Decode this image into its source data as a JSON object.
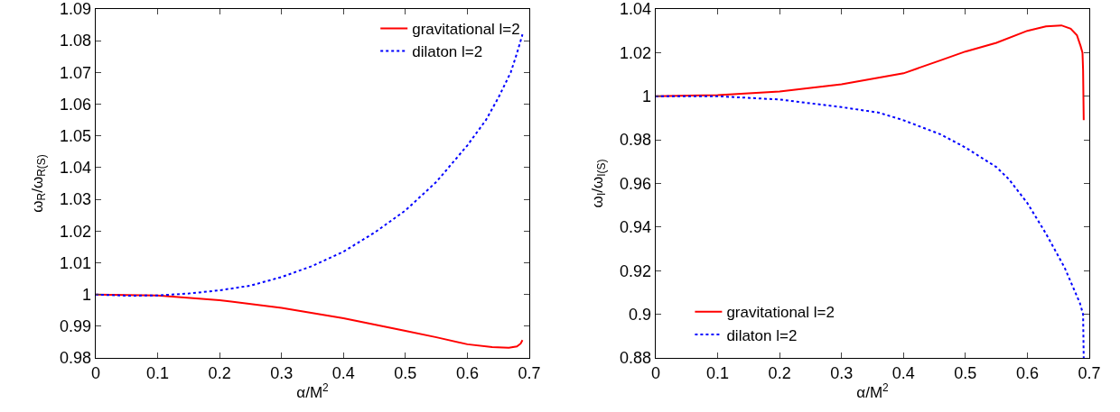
{
  "chart_data": [
    {
      "type": "line",
      "xlabel": "α/M$^{2}$",
      "ylabel": "ω$_{R}$/ω$_{R(S)}$",
      "xlim": [
        0,
        0.7
      ],
      "xticks": [
        0,
        0.1,
        0.2,
        0.3,
        0.4,
        0.5,
        0.6,
        0.7
      ],
      "ylim": [
        0.98,
        1.09
      ],
      "yticks": [
        0.98,
        0.99,
        1,
        1.01,
        1.02,
        1.03,
        1.04,
        1.05,
        1.06,
        1.07,
        1.08,
        1.09
      ],
      "grid": false,
      "legend": "top right",
      "marker": "none",
      "series": [
        {
          "name": "gravitational l=2",
          "color": "#ff0000",
          "line_style": "solid",
          "x": [
            0,
            0.1,
            0.2,
            0.3,
            0.4,
            0.5,
            0.55,
            0.6,
            0.64,
            0.667,
            0.68,
            0.686,
            0.689
          ],
          "values": [
            1.0,
            0.9997,
            0.9982,
            0.9958,
            0.9925,
            0.9885,
            0.9865,
            0.9843,
            0.9834,
            0.9832,
            0.9836,
            0.9845,
            0.9856
          ]
        },
        {
          "name": "dilaton l=2",
          "color": "#0000ff",
          "line_style": "dotted",
          "x": [
            0,
            0.05,
            0.1,
            0.15,
            0.2,
            0.25,
            0.3,
            0.35,
            0.4,
            0.45,
            0.5,
            0.55,
            0.6,
            0.63,
            0.65,
            0.67,
            0.68,
            0.689
          ],
          "values": [
            1.0,
            0.9996,
            0.9997,
            1.0003,
            1.0013,
            1.0028,
            1.0055,
            1.009,
            1.0135,
            1.0195,
            1.0265,
            1.0355,
            1.047,
            1.055,
            1.062,
            1.07,
            1.076,
            1.082
          ]
        }
      ]
    },
    {
      "type": "line",
      "xlabel": "α/M$^{2}$",
      "ylabel": "ω$_{I}$/ω$_{I(S)}$",
      "xlim": [
        0,
        0.7
      ],
      "xticks": [
        0,
        0.1,
        0.2,
        0.3,
        0.4,
        0.5,
        0.6,
        0.7
      ],
      "ylim": [
        0.88,
        1.04
      ],
      "yticks": [
        0.88,
        0.9,
        0.92,
        0.94,
        0.96,
        0.98,
        1,
        1.02,
        1.04
      ],
      "grid": false,
      "legend": "bottom",
      "marker": "none",
      "series": [
        {
          "name": "gravitational l=2",
          "color": "#ff0000",
          "line_style": "solid",
          "x": [
            0,
            0.1,
            0.2,
            0.3,
            0.4,
            0.46,
            0.5,
            0.55,
            0.6,
            0.63,
            0.655,
            0.67,
            0.68,
            0.686,
            0.689,
            0.69,
            0.691
          ],
          "values": [
            1.0,
            1.0005,
            1.0022,
            1.0055,
            1.0105,
            1.0165,
            1.0205,
            1.0245,
            1.03,
            1.032,
            1.0325,
            1.031,
            1.028,
            1.023,
            1.02,
            1.012,
            0.989
          ]
        },
        {
          "name": "dilaton l=2",
          "color": "#0000ff",
          "line_style": "dotted",
          "x": [
            0,
            0.1,
            0.2,
            0.3,
            0.36,
            0.4,
            0.46,
            0.5,
            0.55,
            0.57,
            0.6,
            0.63,
            0.66,
            0.685,
            0.69,
            0.691
          ],
          "values": [
            1.0,
            1.0,
            0.9985,
            0.995,
            0.9925,
            0.989,
            0.9825,
            0.9765,
            0.9675,
            0.962,
            0.951,
            0.937,
            0.9215,
            0.905,
            0.9,
            0.88
          ]
        }
      ]
    }
  ]
}
